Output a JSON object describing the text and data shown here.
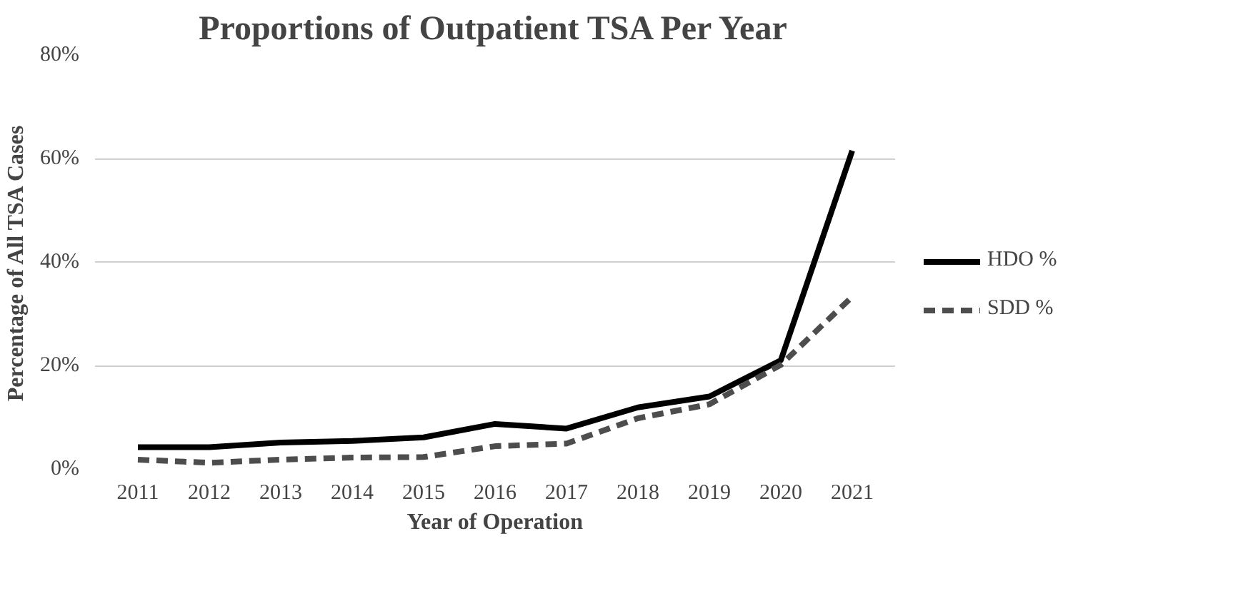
{
  "chart_data": {
    "type": "line",
    "title": "Proportions of Outpatient TSA Per Year",
    "xlabel": "Year of Operation",
    "ylabel": "Percentage of All TSA Cases",
    "categories": [
      "2011",
      "2012",
      "2013",
      "2014",
      "2015",
      "2016",
      "2017",
      "2018",
      "2019",
      "2020",
      "2021"
    ],
    "series": [
      {
        "name": "HDO %",
        "color": "#000000",
        "line_style": "solid",
        "values": [
          4.2,
          4.2,
          5.1,
          5.4,
          6.1,
          8.7,
          7.8,
          11.9,
          14.0,
          21.0,
          61.5
        ]
      },
      {
        "name": "SDD %",
        "color": "#4d4d4d",
        "line_style": "dashed",
        "values": [
          1.8,
          1.2,
          1.8,
          2.2,
          2.3,
          4.4,
          4.9,
          9.8,
          12.5,
          20.1,
          33.3
        ]
      }
    ],
    "ylim": [
      0,
      80
    ],
    "yticks": [
      {
        "value": 0,
        "label": "0%"
      },
      {
        "value": 20,
        "label": "20%"
      },
      {
        "value": 40,
        "label": "40%"
      },
      {
        "value": 60,
        "label": "60%"
      },
      {
        "value": 80,
        "label": "80%"
      }
    ],
    "grid": "y",
    "legend": "right",
    "marker": "none"
  }
}
